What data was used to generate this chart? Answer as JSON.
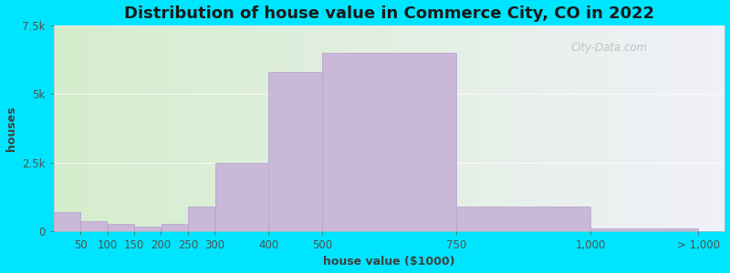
{
  "title": "Distribution of house value in Commerce City, CO in 2022",
  "xlabel": "house value ($1000)",
  "ylabel": "houses",
  "bar_color": "#c9b8d8",
  "bar_edge_color": "#b8a8cc",
  "background_outer": "#00e5ff",
  "background_left_color": "#d4edcc",
  "background_right_color": "#f0f0f8",
  "bar_left_edges": [
    0,
    50,
    100,
    150,
    200,
    250,
    300,
    400,
    500,
    750,
    1000
  ],
  "bar_right_edges": [
    50,
    100,
    150,
    200,
    250,
    300,
    400,
    500,
    750,
    1000,
    1200
  ],
  "bar_values": [
    700,
    350,
    270,
    150,
    270,
    900,
    2500,
    5800,
    6500,
    900,
    80
  ],
  "xtick_positions": [
    50,
    100,
    150,
    200,
    250,
    300,
    400,
    500,
    750,
    1000,
    1200
  ],
  "xtick_labels": [
    "50",
    "100",
    "150",
    "200",
    "250",
    "300",
    "400",
    "500",
    "750",
    "1,000",
    "> 1,000"
  ],
  "xlim": [
    0,
    1250
  ],
  "ylim": [
    0,
    7500
  ],
  "yticks": [
    0,
    2500,
    5000,
    7500
  ],
  "ytick_labels": [
    "0",
    "2.5k",
    "5k",
    "7.5k"
  ],
  "title_fontsize": 13,
  "axis_fontsize": 9,
  "tick_fontsize": 8.5,
  "watermark_text": "City-Data.com"
}
